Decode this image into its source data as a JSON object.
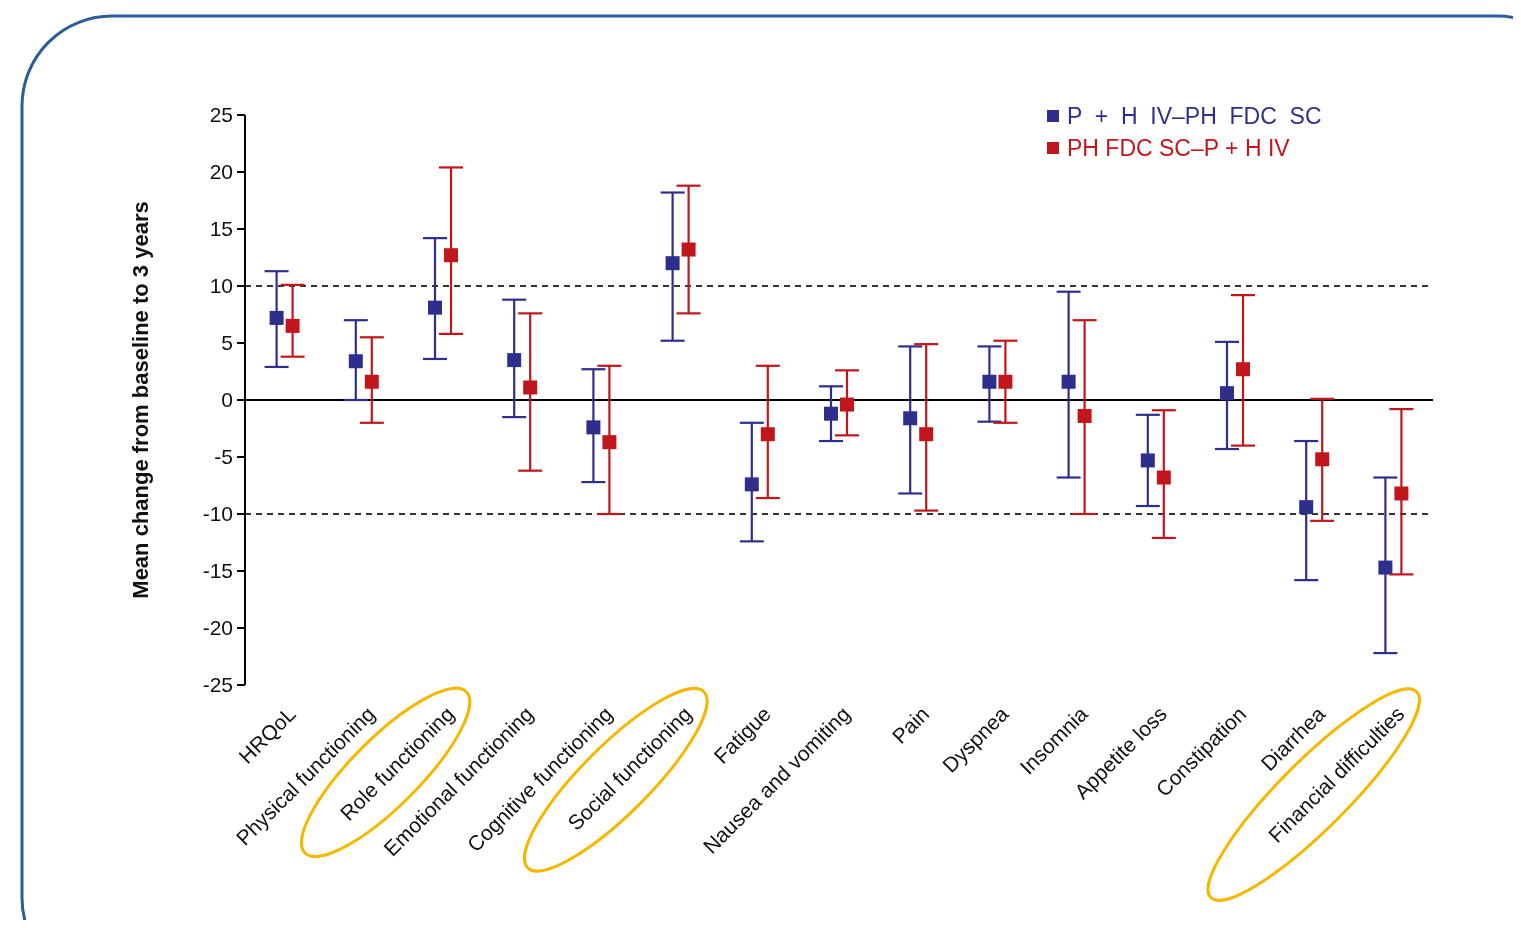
{
  "chart_data": {
    "type": "scatter",
    "ylabel": "Mean change from baseline to 3 years",
    "categories": [
      "HRQoL",
      "Physical functioning",
      "Role functioning",
      "Emotional functioning",
      "Cognitive functioning",
      "Social functioning",
      "Fatigue",
      "Nausea and vomiting",
      "Pain",
      "Dyspnea",
      "Insomnia",
      "Appetite loss",
      "Constipation",
      "Diarrhea",
      "Financial difficulties"
    ],
    "series": [
      {
        "name": "P  +  H  IV–PH  FDC  SC",
        "color": "#2e2e8c",
        "values": [
          7.2,
          3.4,
          8.1,
          3.5,
          -2.4,
          12.0,
          -7.4,
          -1.2,
          -1.6,
          1.6,
          1.6,
          -5.3,
          0.6,
          -9.4,
          -14.7
        ],
        "errors": [
          [
            2.9,
            11.3
          ],
          [
            0,
            7.0
          ],
          [
            3.6,
            14.2
          ],
          [
            -1.5,
            8.8
          ],
          [
            -7.2,
            2.7
          ],
          [
            5.2,
            18.2
          ],
          [
            -12.4,
            -2.0
          ],
          [
            -3.6,
            1.2
          ],
          [
            -8.2,
            4.7
          ],
          [
            -1.9,
            4.7
          ],
          [
            -6.8,
            9.5
          ],
          [
            -9.3,
            -1.3
          ],
          [
            -4.3,
            5.1
          ],
          [
            -15.8,
            -3.6
          ],
          [
            -22.2,
            -6.8
          ]
        ]
      },
      {
        "name": "PH FDC SC–P + H IV",
        "color": "#c0161c",
        "values": [
          6.5,
          1.6,
          12.7,
          1.1,
          -3.7,
          13.2,
          -3.0,
          -0.4,
          -3.0,
          1.6,
          -1.4,
          -6.8,
          2.7,
          -5.2,
          -8.2
        ],
        "errors": [
          [
            3.8,
            10.1
          ],
          [
            -2.0,
            5.5
          ],
          [
            5.8,
            20.4
          ],
          [
            -6.2,
            7.6
          ],
          [
            -10,
            3.0
          ],
          [
            7.6,
            18.8
          ],
          [
            -8.6,
            3.0
          ],
          [
            -3.1,
            2.6
          ],
          [
            -9.7,
            4.9
          ],
          [
            -2.0,
            5.2
          ],
          [
            -10,
            7.0
          ],
          [
            -12.1,
            -0.9
          ],
          [
            -4.0,
            9.2
          ],
          [
            -10.6,
            0.1
          ],
          [
            -15.3,
            -0.8
          ]
        ]
      }
    ],
    "ylim": [
      -25,
      25
    ],
    "yticks": [
      -25,
      -20,
      -15,
      -10,
      -5,
      0,
      5,
      10,
      15,
      20,
      25
    ],
    "ref_lines": [
      {
        "axis": "y",
        "value": 0,
        "line_style": "solid",
        "color": "#000000"
      },
      {
        "axis": "y",
        "value": 10,
        "line_style": "dashed",
        "color": "#333333"
      },
      {
        "axis": "y",
        "value": -10,
        "line_style": "dashed",
        "color": "#333333"
      }
    ],
    "marker": "square",
    "legend": "top right",
    "grid": false
  }
}
